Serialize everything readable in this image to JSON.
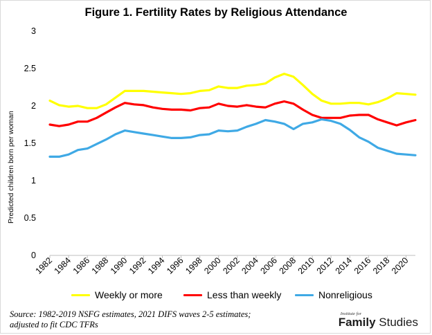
{
  "chart_data": {
    "type": "line",
    "title": "Figure 1. Fertility Rates by Religious Attendance",
    "ylabel": "Predicted children born per woman",
    "xlabel": "",
    "ylim": [
      0,
      3
    ],
    "yticks": [
      "0",
      "0.5",
      "1",
      "1.5",
      "2",
      "2.5",
      "3"
    ],
    "xlim": [
      1982,
      2021
    ],
    "xticks": [
      "1982",
      "1984",
      "1986",
      "1988",
      "1990",
      "1992",
      "1994",
      "1996",
      "1998",
      "2000",
      "2002",
      "2004",
      "2006",
      "2008",
      "2010",
      "2012",
      "2014",
      "2016",
      "2018",
      "2020"
    ],
    "grid": false,
    "legend_position": "bottom",
    "x": [
      1982,
      1983,
      1984,
      1985,
      1986,
      1987,
      1988,
      1989,
      1990,
      1991,
      1992,
      1993,
      1994,
      1995,
      1996,
      1997,
      1998,
      1999,
      2000,
      2001,
      2002,
      2003,
      2004,
      2005,
      2006,
      2007,
      2008,
      2009,
      2010,
      2011,
      2012,
      2013,
      2014,
      2015,
      2016,
      2017,
      2018,
      2019,
      2020,
      2021
    ],
    "series": [
      {
        "name": "Weekly or more",
        "color": "#ffff00",
        "values": [
          2.07,
          2.01,
          1.99,
          2.0,
          1.97,
          1.97,
          2.02,
          2.11,
          2.2,
          2.2,
          2.2,
          2.19,
          2.18,
          2.17,
          2.16,
          2.17,
          2.2,
          2.21,
          2.26,
          2.24,
          2.24,
          2.27,
          2.28,
          2.3,
          2.38,
          2.43,
          2.39,
          2.28,
          2.16,
          2.07,
          2.03,
          2.03,
          2.04,
          2.04,
          2.02,
          2.05,
          2.1,
          2.17,
          2.16,
          2.15
        ]
      },
      {
        "name": "Less than weekly",
        "color": "#ff0000",
        "values": [
          1.75,
          1.73,
          1.75,
          1.79,
          1.79,
          1.84,
          1.91,
          1.98,
          2.04,
          2.02,
          2.01,
          1.98,
          1.96,
          1.95,
          1.95,
          1.94,
          1.97,
          1.98,
          2.03,
          2.0,
          1.99,
          2.01,
          1.99,
          1.98,
          2.03,
          2.06,
          2.03,
          1.95,
          1.88,
          1.84,
          1.84,
          1.84,
          1.87,
          1.88,
          1.88,
          1.82,
          1.78,
          1.74,
          1.78,
          1.81
        ]
      },
      {
        "name": "Nonreligious",
        "color": "#3fa9e5",
        "values": [
          1.32,
          1.32,
          1.35,
          1.41,
          1.43,
          1.49,
          1.55,
          1.62,
          1.67,
          1.65,
          1.63,
          1.61,
          1.59,
          1.57,
          1.57,
          1.58,
          1.61,
          1.62,
          1.67,
          1.66,
          1.67,
          1.72,
          1.76,
          1.81,
          1.79,
          1.76,
          1.69,
          1.76,
          1.78,
          1.82,
          1.8,
          1.76,
          1.68,
          1.58,
          1.52,
          1.44,
          1.4,
          1.36,
          1.35,
          1.34
        ]
      }
    ]
  },
  "source_line1": "Source: 1982-2019 NSFG estimates, 2021 DIFS waves 2-5 estimates;",
  "source_line2": "adjusted to fit CDC TFRs",
  "logo": {
    "small": "Institute for",
    "bold": "Family",
    "regular": " Studies"
  }
}
